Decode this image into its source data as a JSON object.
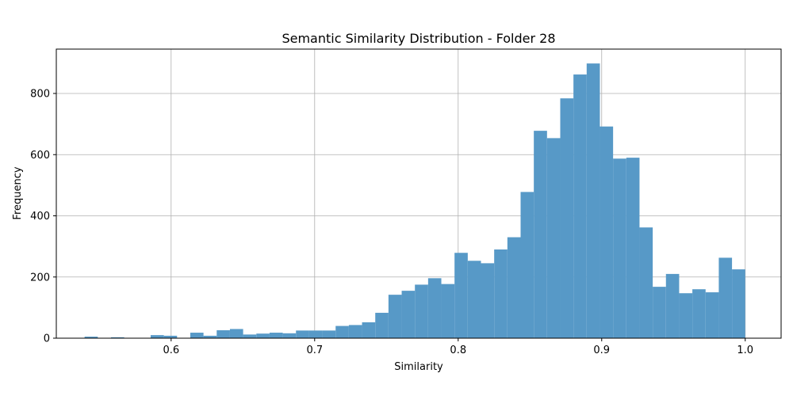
{
  "chart_data": {
    "type": "bar",
    "title": "Semantic Similarity Distribution - Folder 28",
    "xlabel": "Similarity",
    "ylabel": "Frequency",
    "xlim": [
      0.52,
      1.025
    ],
    "ylim": [
      0,
      945
    ],
    "x_ticks": [
      0.6,
      0.7,
      0.8,
      0.9,
      1.0
    ],
    "x_tick_labels": [
      "0.6",
      "0.7",
      "0.8",
      "0.9",
      "1.0"
    ],
    "y_ticks": [
      0,
      200,
      400,
      600,
      800
    ],
    "y_tick_labels": [
      "0",
      "200",
      "400",
      "600",
      "800"
    ],
    "grid": true,
    "bar_color": "#5799c7",
    "bin_start": 0.5397,
    "bin_end": 1.0,
    "bin_count": 50,
    "values": [
      5,
      0,
      3,
      0,
      0,
      10,
      8,
      0,
      18,
      8,
      26,
      30,
      12,
      15,
      18,
      16,
      25,
      25,
      25,
      40,
      43,
      52,
      83,
      142,
      155,
      175,
      196,
      177,
      279,
      253,
      245,
      290,
      330,
      478,
      678,
      654,
      784,
      862,
      898,
      692,
      587,
      590,
      362,
      168,
      210,
      147,
      160,
      150,
      263,
      225
    ]
  }
}
